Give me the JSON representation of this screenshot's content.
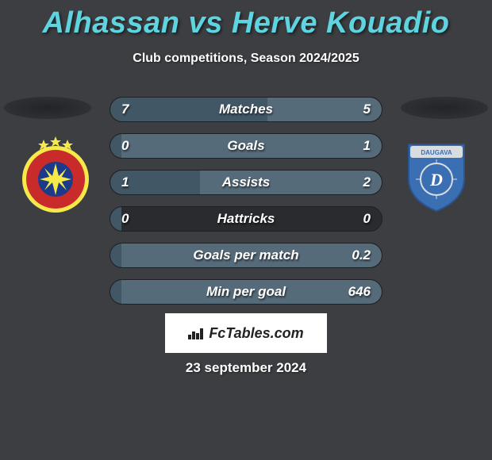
{
  "title": "Alhassan vs Herve Kouadio",
  "subtitle": "Club competitions, Season 2024/2025",
  "date": "23 september 2024",
  "brand": "FcTables.com",
  "colors": {
    "background": "#3d3e42",
    "title": "#5dd4e0",
    "text": "#ffffff",
    "stat_bg": "#2a2b2f",
    "stat_fill_left": "#425766",
    "stat_fill_right": "#566b7a",
    "brand_bg": "#ffffff"
  },
  "typography": {
    "title_fontsize": 38,
    "subtitle_fontsize": 16,
    "stat_fontsize": 17,
    "date_fontsize": 17
  },
  "crest_left": {
    "name": "FCSB",
    "colors": {
      "ring": "#f7e94a",
      "inner": "#c92a2a",
      "center": "#1c3a8a",
      "stars": "#f7e94a"
    }
  },
  "crest_right": {
    "name": "Daugava",
    "colors": {
      "shield": "#3b6fb3",
      "top": "#d8dde2",
      "text": "#ffffff"
    }
  },
  "stats": [
    {
      "label": "Matches",
      "left_val": "7",
      "right_val": "5",
      "left_pct": 58,
      "right_pct": 42
    },
    {
      "label": "Goals",
      "left_val": "0",
      "right_val": "1",
      "left_pct": 4,
      "right_pct": 96
    },
    {
      "label": "Assists",
      "left_val": "1",
      "right_val": "2",
      "left_pct": 33,
      "right_pct": 67
    },
    {
      "label": "Hattricks",
      "left_val": "0",
      "right_val": "0",
      "left_pct": 4,
      "right_pct": 0
    },
    {
      "label": "Goals per match",
      "left_val": "",
      "right_val": "0.2",
      "left_pct": 4,
      "right_pct": 96
    },
    {
      "label": "Min per goal",
      "left_val": "",
      "right_val": "646",
      "left_pct": 4,
      "right_pct": 96
    }
  ]
}
